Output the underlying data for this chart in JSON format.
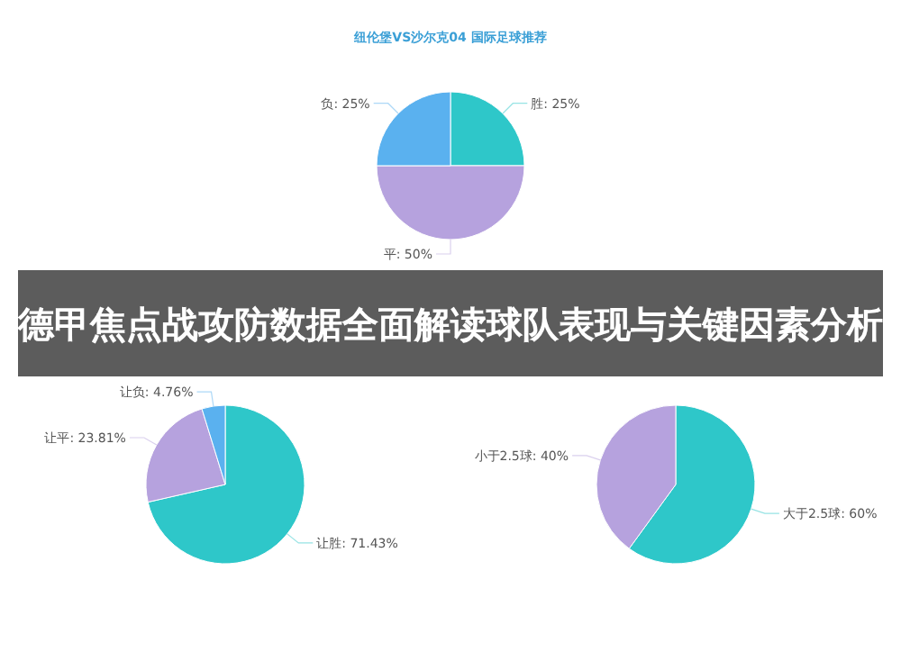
{
  "chart_data": [
    {
      "type": "pie",
      "title": "纽伦堡VS沙尔克04 国际足球推荐",
      "categories": [
        "胜",
        "平",
        "负"
      ],
      "values": [
        25,
        50,
        25
      ],
      "value_labels": [
        "25%",
        "50%",
        "25%"
      ],
      "colors": [
        "#2ec7c9",
        "#b6a2de",
        "#5ab1ef"
      ]
    },
    {
      "type": "other",
      "title": "德甲焦点战攻防数据全面解读球队表现与关键因素分析"
    },
    {
      "type": "pie",
      "categories": [
        "让胜",
        "让平",
        "让负"
      ],
      "values": [
        71.43,
        23.81,
        4.76
      ],
      "value_labels": [
        "71.43%",
        "23.81%",
        "4.76%"
      ],
      "colors": [
        "#2ec7c9",
        "#b6a2de",
        "#5ab1ef"
      ]
    },
    {
      "type": "pie",
      "categories": [
        "大于2.5球",
        "小于2.5球"
      ],
      "values": [
        60,
        40
      ],
      "value_labels": [
        "60%",
        "40%"
      ],
      "colors": [
        "#2ec7c9",
        "#b6a2de"
      ]
    }
  ]
}
